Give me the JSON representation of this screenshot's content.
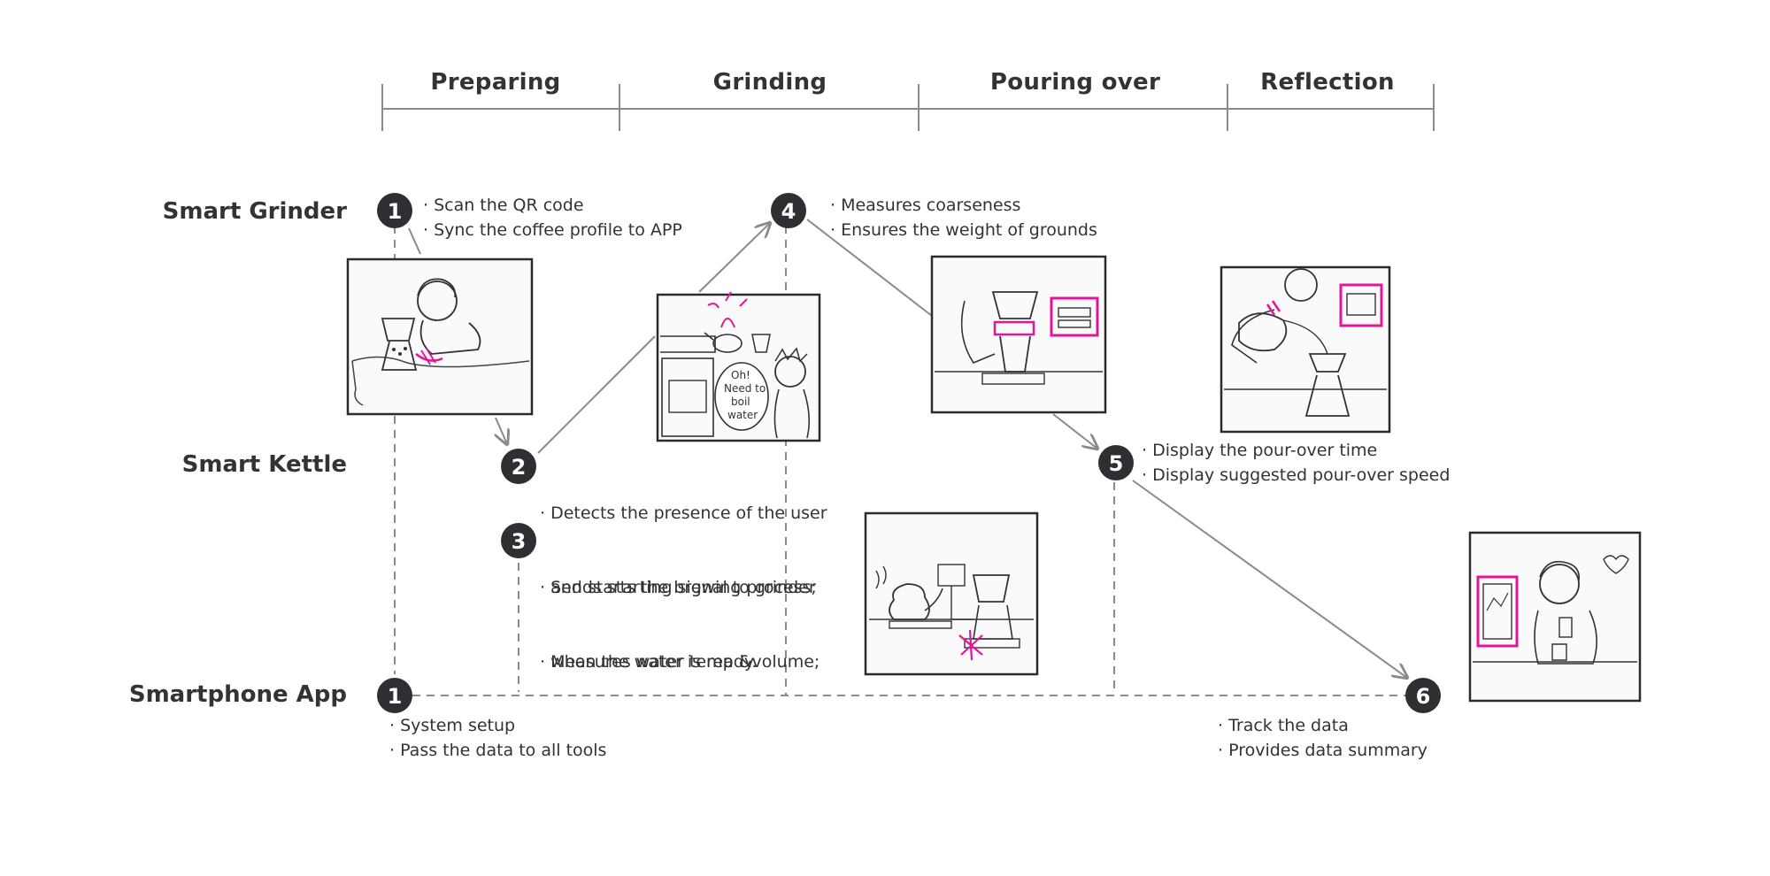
{
  "phases": [
    "Preparing",
    "Grinding",
    "Pouring over",
    "Reflection"
  ],
  "lanes": {
    "grinder": "Smart Grinder",
    "kettle": "Smart Kettle",
    "app": "Smartphone App"
  },
  "steps": {
    "s1_grinder": {
      "number": "1",
      "lines": [
        "· Scan the QR code",
        "· Sync the coffee profile to APP"
      ]
    },
    "s2": {
      "number": "2",
      "lines": [
        "· Detects the presence of the user",
        "  and starts the brewing process;",
        "· Measures water temp &volume;"
      ]
    },
    "s3": {
      "number": "3",
      "lines": [
        "· Sends starting signal to grinder",
        "  when the water is ready."
      ]
    },
    "s4": {
      "number": "4",
      "lines": [
        "· Measures coarseness",
        "· Ensures the weight of grounds"
      ]
    },
    "s5": {
      "number": "5",
      "lines": [
        "· Display the pour-over time",
        "· Display suggested pour-over speed"
      ]
    },
    "s1_app": {
      "number": "1",
      "lines": [
        "· System setup",
        "· Pass the data to all tools"
      ]
    },
    "s6": {
      "number": "6",
      "lines": [
        "· Track the data",
        "· Provides data summary"
      ]
    }
  },
  "sketch_text": {
    "speech": [
      "Oh!",
      "Need to",
      "boil",
      "water"
    ]
  },
  "colors": {
    "ink": "#333333",
    "badge": "#2e2e33",
    "line": "#8a8a8a",
    "accent": "#e0179a"
  }
}
